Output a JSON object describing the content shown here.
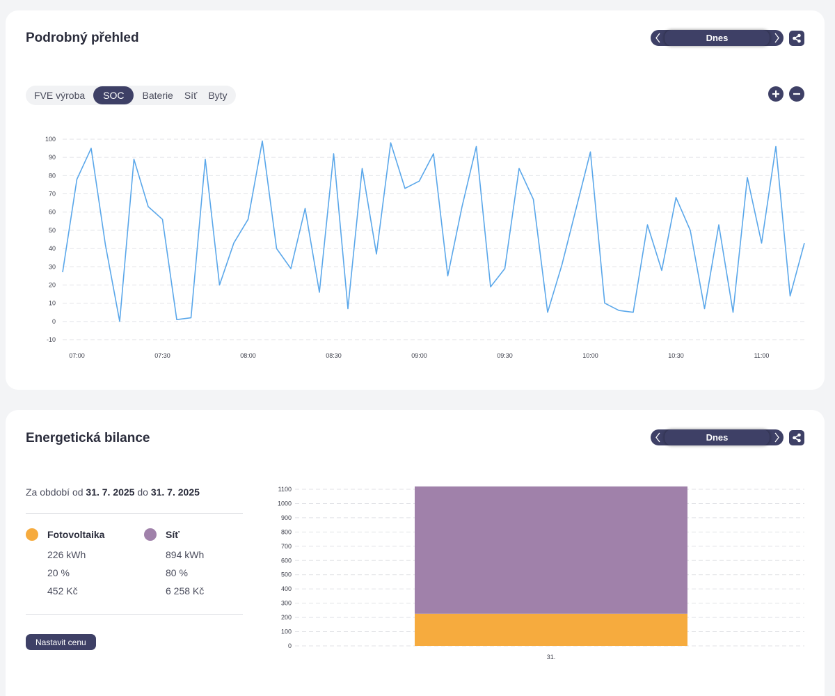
{
  "overview": {
    "title": "Podrobný přehled",
    "date_label": "Dnes",
    "tabs": [
      {
        "label": "FVE výroba",
        "active": false
      },
      {
        "label": "SOC",
        "active": true
      },
      {
        "label": "Baterie",
        "active": false
      },
      {
        "label": "Síť",
        "active": false
      },
      {
        "label": "Byty",
        "active": false
      }
    ]
  },
  "balance": {
    "title": "Energetická bilance",
    "date_label": "Dnes",
    "period_prefix": "Za období od",
    "period_from": "31. 7. 2025",
    "period_mid": "do",
    "period_to": "31. 7. 2025",
    "items": [
      {
        "name": "Fotovoltaika",
        "color": "#f6ab3e",
        "energy": "226 kWh",
        "percent": "20 %",
        "cost": "452 Kč"
      },
      {
        "name": "Síť",
        "color": "#a081aa",
        "energy": "894 kWh",
        "percent": "80 %",
        "cost": "6 258 Kč"
      }
    ],
    "set_price_label": "Nastavit cenu"
  },
  "colors": {
    "accent": "#3e4066",
    "line": "#5aa7ea",
    "pv": "#f6ab3e",
    "grid": "#a081aa"
  },
  "chart_data": [
    {
      "type": "line",
      "title": "",
      "xlabel": "",
      "ylabel": "",
      "x_ticks": [
        "07:00",
        "07:30",
        "08:00",
        "08:30",
        "09:00",
        "09:30",
        "10:00",
        "10:30",
        "11:00"
      ],
      "y_ticks": [
        100,
        90,
        80,
        70,
        60,
        50,
        40,
        30,
        20,
        10,
        0,
        -10
      ],
      "ylim": [
        -10,
        100
      ],
      "x_start": "06:55",
      "x_step_minutes": 5,
      "grid": true,
      "series": [
        {
          "values": [
            27,
            78,
            95,
            42,
            0,
            89,
            63,
            56,
            1,
            2,
            89,
            20,
            43,
            56,
            99,
            40,
            29,
            62,
            16,
            92,
            7,
            84,
            37,
            98,
            73,
            77,
            92,
            25,
            63,
            96,
            19,
            29,
            84,
            67,
            5,
            31,
            62,
            93,
            10,
            6,
            5,
            53,
            28,
            68,
            50,
            7,
            53,
            5,
            79,
            43,
            96,
            14,
            43
          ]
        }
      ]
    },
    {
      "type": "bar",
      "stacked": true,
      "title": "",
      "categories": [
        "31."
      ],
      "y_ticks": [
        0,
        100,
        200,
        300,
        400,
        500,
        600,
        700,
        800,
        900,
        1000,
        1100
      ],
      "ylim": [
        0,
        1100
      ],
      "grid": true,
      "series": [
        {
          "name": "Fotovoltaika",
          "values": [
            226
          ],
          "color": "#f6ab3e"
        },
        {
          "name": "Síť",
          "values": [
            894
          ],
          "color": "#a081aa"
        }
      ]
    }
  ]
}
